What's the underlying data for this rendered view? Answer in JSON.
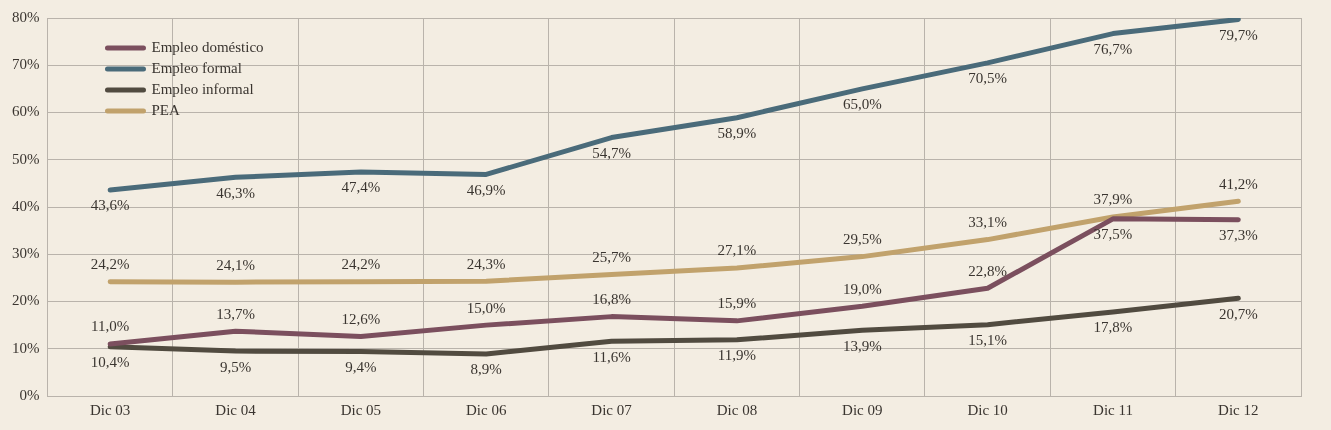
{
  "chart_data": {
    "type": "line",
    "categories": [
      "Dic 03",
      "Dic 04",
      "Dic 05",
      "Dic 06",
      "Dic 07",
      "Dic 08",
      "Dic 09",
      "Dic 10",
      "Dic 11",
      "Dic 12"
    ],
    "series": [
      {
        "name": "Empleo doméstico",
        "color": "#7b4f5e",
        "values": [
          11.0,
          13.7,
          12.6,
          15.0,
          16.8,
          15.9,
          19.0,
          22.8,
          37.5,
          37.3
        ],
        "value_labels": [
          "11,0%",
          "13,7%",
          "12,6%",
          "15,0%",
          "16,8%",
          "15,9%",
          "19,0%",
          "22,8%",
          "37,5%",
          "37,3%"
        ]
      },
      {
        "name": "Empleo formal",
        "color": "#4a6b7a",
        "values": [
          43.6,
          46.3,
          47.4,
          46.9,
          54.7,
          58.9,
          65.0,
          70.5,
          76.7,
          79.7
        ],
        "value_labels": [
          "43,6%",
          "46,3%",
          "47,4%",
          "46,9%",
          "54,7%",
          "58,9%",
          "65,0%",
          "70,5%",
          "76,7%",
          "79,7%"
        ]
      },
      {
        "name": "Empleo informal",
        "color": "#514b40",
        "values": [
          10.4,
          9.5,
          9.4,
          8.9,
          11.6,
          11.9,
          13.9,
          15.1,
          17.8,
          20.7
        ],
        "value_labels": [
          "10,4%",
          "9,5%",
          "9,4%",
          "8,9%",
          "11,6%",
          "11,9%",
          "13,9%",
          "15,1%",
          "17,8%",
          "20,7%"
        ]
      },
      {
        "name": "PEA",
        "color": "#c1a26c",
        "values": [
          24.2,
          24.1,
          24.2,
          24.3,
          25.7,
          27.1,
          29.5,
          33.1,
          37.9,
          41.2
        ],
        "value_labels": [
          "24,2%",
          "24,1%",
          "24,2%",
          "24,3%",
          "25,7%",
          "27,1%",
          "29,5%",
          "33,1%",
          "37,9%",
          "41,2%"
        ]
      }
    ],
    "ylim": [
      0,
      80
    ],
    "yticks": [
      {
        "value": 0,
        "label": "0%"
      },
      {
        "value": 10,
        "label": "10%"
      },
      {
        "value": 20,
        "label": "20%"
      },
      {
        "value": 30,
        "label": "30%"
      },
      {
        "value": 40,
        "label": "40%"
      },
      {
        "value": 50,
        "label": "50%"
      },
      {
        "value": 60,
        "label": "60%"
      },
      {
        "value": 70,
        "label": "70%"
      },
      {
        "value": 80,
        "label": "80%"
      }
    ],
    "grid": true,
    "legend": "top left",
    "marker": "none",
    "line_style": "solid"
  }
}
